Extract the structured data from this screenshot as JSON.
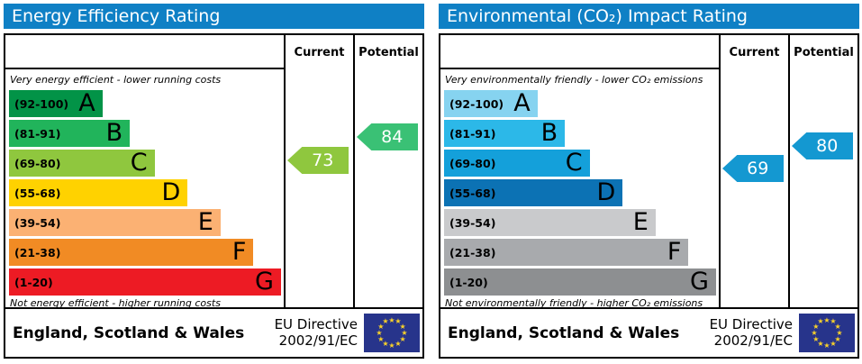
{
  "theme": {
    "header_bg": "#0f80c5",
    "border_color": "#000000"
  },
  "eu_flag": {
    "bg": "#27348b",
    "star": "#f8d12a"
  },
  "panels": [
    {
      "title": "Energy Efficiency Rating",
      "columns": {
        "current": "Current",
        "potential": "Potential"
      },
      "top_caption": "Very energy efficient - lower running costs",
      "bottom_caption": "Not energy efficient - higher running costs",
      "bands": [
        {
          "range": "(92-100)",
          "letter": "A",
          "color": "#029347",
          "width_pct": 34
        },
        {
          "range": "(81-91)",
          "letter": "B",
          "color": "#21b45b",
          "width_pct": 44
        },
        {
          "range": "(69-80)",
          "letter": "C",
          "color": "#8fc73e",
          "width_pct": 53
        },
        {
          "range": "(55-68)",
          "letter": "D",
          "color": "#ffd200",
          "width_pct": 65
        },
        {
          "range": "(39-54)",
          "letter": "E",
          "color": "#fbb173",
          "width_pct": 77
        },
        {
          "range": "(21-38)",
          "letter": "F",
          "color": "#f18b24",
          "width_pct": 89
        },
        {
          "range": "(1-20)",
          "letter": "G",
          "color": "#ed1b24",
          "width_pct": 99
        }
      ],
      "current": {
        "value": 73,
        "color": "#8fc73e"
      },
      "potential": {
        "value": 84,
        "color": "#3ac175"
      },
      "footer": {
        "region": "England, Scotland & Wales",
        "directive_line1": "EU Directive",
        "directive_line2": "2002/91/EC"
      }
    },
    {
      "title": "Environmental (CO₂) Impact Rating",
      "columns": {
        "current": "Current",
        "potential": "Potential"
      },
      "top_caption": "Very environmentally friendly - lower CO₂ emissions",
      "bottom_caption": "Not environmentally friendly - higher CO₂ emissions",
      "bands": [
        {
          "range": "(92-100)",
          "letter": "A",
          "color": "#86d3f0",
          "width_pct": 34
        },
        {
          "range": "(81-91)",
          "letter": "B",
          "color": "#2cb8e8",
          "width_pct": 44
        },
        {
          "range": "(69-80)",
          "letter": "C",
          "color": "#14a0da",
          "width_pct": 53
        },
        {
          "range": "(55-68)",
          "letter": "D",
          "color": "#0c72b4",
          "width_pct": 65
        },
        {
          "range": "(39-54)",
          "letter": "E",
          "color": "#c9cacc",
          "width_pct": 77
        },
        {
          "range": "(21-38)",
          "letter": "F",
          "color": "#a8aaad",
          "width_pct": 89
        },
        {
          "range": "(1-20)",
          "letter": "G",
          "color": "#8d8f91",
          "width_pct": 99
        }
      ],
      "current": {
        "value": 69,
        "color": "#1498d1"
      },
      "potential": {
        "value": 80,
        "color": "#1498d1"
      },
      "footer": {
        "region": "England, Scotland & Wales",
        "directive_line1": "EU Directive",
        "directive_line2": "2002/91/EC"
      }
    }
  ],
  "chart_data": [
    {
      "type": "bar",
      "title": "Energy Efficiency Rating",
      "orientation": "horizontal",
      "categories": [
        "A",
        "B",
        "C",
        "D",
        "E",
        "F",
        "G"
      ],
      "band_ranges": [
        "92-100",
        "81-91",
        "69-80",
        "55-68",
        "39-54",
        "21-38",
        "1-20"
      ],
      "values": [
        34,
        44,
        53,
        65,
        77,
        89,
        99
      ],
      "value_note": "bar lengths as % of column width (decorative scale)",
      "markers": {
        "current": 73,
        "current_band": "C",
        "potential": 84,
        "potential_band": "B"
      },
      "top_note": "Very energy efficient - lower running costs",
      "bottom_note": "Not energy efficient - higher running costs",
      "footer": "England, Scotland & Wales — EU Directive 2002/91/EC"
    },
    {
      "type": "bar",
      "title": "Environmental (CO₂) Impact Rating",
      "orientation": "horizontal",
      "categories": [
        "A",
        "B",
        "C",
        "D",
        "E",
        "F",
        "G"
      ],
      "band_ranges": [
        "92-100",
        "81-91",
        "69-80",
        "55-68",
        "39-54",
        "21-38",
        "1-20"
      ],
      "values": [
        34,
        44,
        53,
        65,
        77,
        89,
        99
      ],
      "value_note": "bar lengths as % of column width (decorative scale)",
      "markers": {
        "current": 69,
        "current_band": "C",
        "potential": 80,
        "potential_band": "C"
      },
      "top_note": "Very environmentally friendly - lower CO₂ emissions",
      "bottom_note": "Not environmentally friendly - higher CO₂ emissions",
      "footer": "England, Scotland & Wales — EU Directive 2002/91/EC"
    }
  ]
}
